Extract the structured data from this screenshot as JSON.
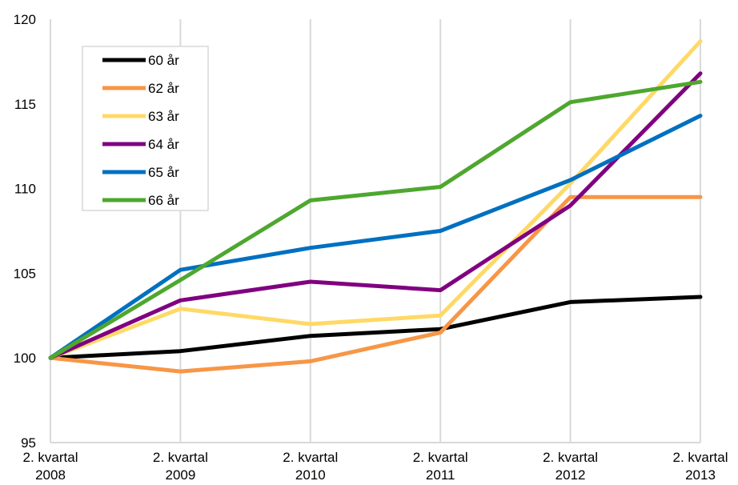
{
  "chart_data": {
    "type": "line",
    "title": "",
    "xlabel": "",
    "ylabel": "",
    "ylim": [
      95,
      120
    ],
    "yticks": [
      95,
      100,
      105,
      110,
      115,
      120
    ],
    "grid": "vertical",
    "legend_position": "top-left",
    "categories": [
      "2. kvartal 2008",
      "2. kvartal 2009",
      "2. kvartal 2010",
      "2. kvartal 2011",
      "2. kvartal 2012",
      "2. kvartal 2013"
    ],
    "category_lines": [
      [
        "2. kvartal",
        "2008"
      ],
      [
        "2. kvartal",
        "2009"
      ],
      [
        "2. kvartal",
        "2010"
      ],
      [
        "2. kvartal",
        "2011"
      ],
      [
        "2. kvartal",
        "2012"
      ],
      [
        "2. kvartal",
        "2013"
      ]
    ],
    "series": [
      {
        "name": "60 år",
        "color": "#000000",
        "values": [
          100,
          100.4,
          101.3,
          101.7,
          103.3,
          103.6
        ]
      },
      {
        "name": "62 år",
        "color": "#F79646",
        "values": [
          100,
          99.2,
          99.8,
          101.5,
          109.5,
          109.5
        ]
      },
      {
        "name": "63 år",
        "color": "#FFD966",
        "values": [
          100,
          102.9,
          102.0,
          102.5,
          110.3,
          118.7
        ]
      },
      {
        "name": "64 år",
        "color": "#800080",
        "values": [
          100,
          103.4,
          104.5,
          104.0,
          109.0,
          116.8
        ]
      },
      {
        "name": "65 år",
        "color": "#0070C0",
        "values": [
          100,
          105.2,
          106.5,
          107.5,
          110.5,
          114.3
        ]
      },
      {
        "name": "66 år",
        "color": "#4EA72E",
        "values": [
          100,
          104.6,
          109.3,
          110.1,
          115.1,
          116.3
        ]
      }
    ]
  }
}
